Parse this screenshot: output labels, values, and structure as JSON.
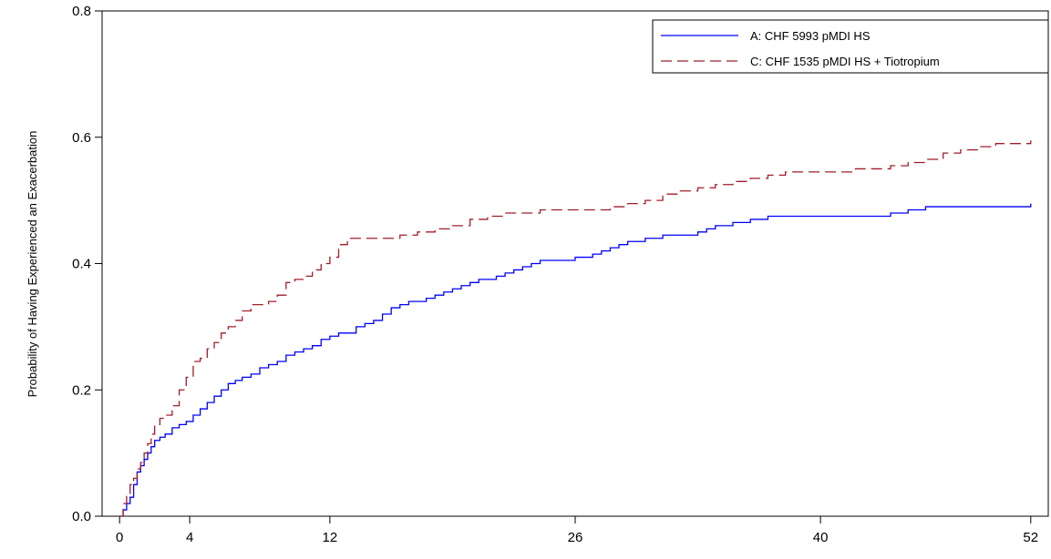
{
  "chart_data": {
    "type": "line",
    "title": "",
    "xlabel": "",
    "ylabel": "Probability of Having Experienced an Exacerbation",
    "xlim": [
      -1,
      53
    ],
    "ylim": [
      0,
      0.8
    ],
    "x_ticks": [
      0,
      4,
      12,
      26,
      40,
      52
    ],
    "x_tick_labels": [
      "0",
      "4",
      "12",
      "26",
      "40",
      "52"
    ],
    "y_ticks": [
      0.0,
      0.2,
      0.4,
      0.6,
      0.8
    ],
    "y_tick_labels": [
      "0.0",
      "0.2",
      "0.4",
      "0.6",
      "0.8"
    ],
    "grid": false,
    "legend_position": "top-right",
    "series": [
      {
        "name": "A: CHF 5993 pMDI HS",
        "color": "#0000ff",
        "dash": "solid",
        "step": true,
        "x": [
          0,
          0.2,
          0.4,
          0.6,
          0.8,
          1.0,
          1.2,
          1.4,
          1.6,
          1.8,
          2.0,
          2.3,
          2.6,
          3.0,
          3.4,
          3.8,
          4.2,
          4.6,
          5.0,
          5.4,
          5.8,
          6.2,
          6.6,
          7.0,
          7.5,
          8.0,
          8.5,
          9.0,
          9.5,
          10.0,
          10.5,
          11.0,
          11.5,
          12.0,
          12.5,
          13.0,
          13.5,
          14.0,
          14.5,
          15.0,
          15.5,
          16.0,
          16.5,
          17.0,
          17.5,
          18.0,
          18.5,
          19.0,
          19.5,
          20.0,
          20.5,
          21.0,
          21.5,
          22.0,
          22.5,
          23.0,
          23.5,
          24.0,
          24.5,
          25.0,
          25.5,
          26.0,
          27.0,
          27.5,
          28.0,
          28.5,
          29.0,
          29.5,
          30.0,
          31.0,
          32.0,
          33.0,
          33.5,
          34.0,
          34.5,
          35.0,
          36.0,
          37.0,
          37.5,
          38.0,
          38.5,
          39.0,
          40.0,
          42.0,
          44.0,
          45.0,
          46.0,
          47.0,
          48.0,
          50.0,
          51.0,
          52.0
        ],
        "y": [
          0.0,
          0.01,
          0.02,
          0.03,
          0.05,
          0.07,
          0.08,
          0.09,
          0.1,
          0.11,
          0.12,
          0.125,
          0.13,
          0.14,
          0.145,
          0.15,
          0.16,
          0.17,
          0.18,
          0.19,
          0.2,
          0.21,
          0.215,
          0.22,
          0.225,
          0.235,
          0.24,
          0.245,
          0.255,
          0.26,
          0.265,
          0.27,
          0.28,
          0.285,
          0.29,
          0.29,
          0.3,
          0.305,
          0.31,
          0.32,
          0.33,
          0.335,
          0.34,
          0.34,
          0.345,
          0.35,
          0.355,
          0.36,
          0.365,
          0.37,
          0.375,
          0.375,
          0.38,
          0.385,
          0.39,
          0.395,
          0.4,
          0.405,
          0.405,
          0.405,
          0.405,
          0.41,
          0.415,
          0.42,
          0.425,
          0.43,
          0.435,
          0.435,
          0.44,
          0.445,
          0.445,
          0.45,
          0.455,
          0.46,
          0.46,
          0.465,
          0.47,
          0.475,
          0.475,
          0.475,
          0.475,
          0.475,
          0.475,
          0.475,
          0.48,
          0.485,
          0.49,
          0.49,
          0.49,
          0.49,
          0.49,
          0.495
        ]
      },
      {
        "name": "C: CHF 1535 pMDI HS + Tiotropium",
        "color": "#a11d2b",
        "dash": "dashed",
        "step": true,
        "x": [
          0,
          0.2,
          0.4,
          0.6,
          0.8,
          1.0,
          1.2,
          1.4,
          1.6,
          1.8,
          2.0,
          2.3,
          2.6,
          3.0,
          3.4,
          3.8,
          4.2,
          4.6,
          5.0,
          5.4,
          5.8,
          6.2,
          6.6,
          7.0,
          7.5,
          8.0,
          8.5,
          9.0,
          9.5,
          10.0,
          10.5,
          11.0,
          11.5,
          12.0,
          12.5,
          13.0,
          13.5,
          14.0,
          14.5,
          15.0,
          16.0,
          17.0,
          18.0,
          19.0,
          20.0,
          21.0,
          22.0,
          23.0,
          24.0,
          26.0,
          28.0,
          29.0,
          30.0,
          31.0,
          32.0,
          33.0,
          34.0,
          35.0,
          36.0,
          37.0,
          38.0,
          39.0,
          40.0,
          42.0,
          44.0,
          45.0,
          46.0,
          47.0,
          48.0,
          49.0,
          50.0,
          51.0,
          52.0
        ],
        "y": [
          0.0,
          0.02,
          0.035,
          0.05,
          0.06,
          0.075,
          0.085,
          0.1,
          0.115,
          0.13,
          0.145,
          0.155,
          0.16,
          0.175,
          0.2,
          0.22,
          0.245,
          0.25,
          0.265,
          0.275,
          0.29,
          0.3,
          0.31,
          0.325,
          0.335,
          0.335,
          0.34,
          0.35,
          0.37,
          0.375,
          0.38,
          0.39,
          0.4,
          0.41,
          0.43,
          0.44,
          0.44,
          0.44,
          0.44,
          0.44,
          0.445,
          0.45,
          0.455,
          0.46,
          0.47,
          0.475,
          0.48,
          0.48,
          0.485,
          0.485,
          0.49,
          0.495,
          0.5,
          0.51,
          0.515,
          0.52,
          0.525,
          0.53,
          0.535,
          0.54,
          0.545,
          0.545,
          0.545,
          0.55,
          0.555,
          0.56,
          0.565,
          0.575,
          0.58,
          0.585,
          0.59,
          0.59,
          0.595
        ]
      }
    ]
  }
}
